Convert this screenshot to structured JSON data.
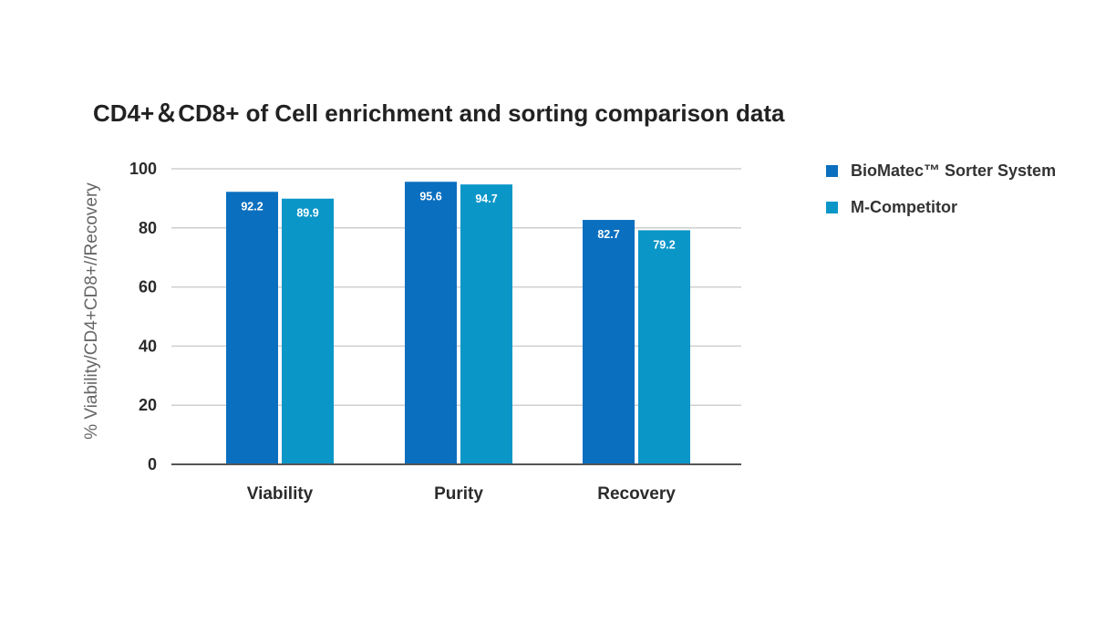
{
  "chart_data": {
    "type": "bar",
    "title": "CD4+＆CD8+ of Cell enrichment and sorting comparison data",
    "xlabel": "",
    "ylabel": "% Viability/CD4+CD8+//Recovery",
    "categories": [
      "Viability",
      "Purity",
      "Recovery"
    ],
    "series": [
      {
        "name": "BioMatec™ Sorter System",
        "values": [
          92.2,
          95.6,
          82.7
        ],
        "color": "#0B6FBF"
      },
      {
        "name": "M-Competitor",
        "values": [
          89.9,
          94.7,
          79.2
        ],
        "color": "#0B96C8"
      }
    ],
    "ylim": [
      0,
      100
    ],
    "yticks": [
      0,
      20,
      40,
      60,
      80,
      100
    ],
    "data_labels": [
      [
        "92.2",
        "95.6",
        "82.7"
      ],
      [
        "89.9",
        "94.7",
        "79.2"
      ]
    ],
    "grid": true,
    "legend_position": "right"
  },
  "colors": {
    "gridline": "#cfcfcf",
    "axis": "#555555",
    "tick_text": "#2b2b2b",
    "ylabel_text": "#666666",
    "data_label_text": "#ffffff"
  }
}
